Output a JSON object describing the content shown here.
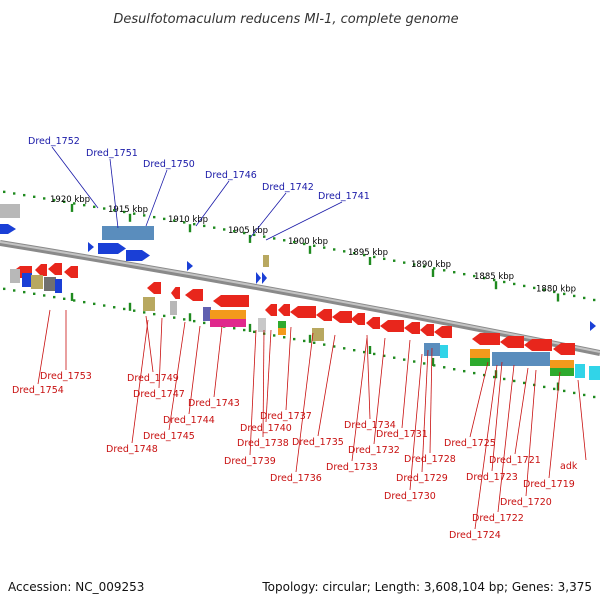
{
  "title": "Desulfotomaculum reducens MI-1, complete genome",
  "footer": {
    "accession": "Accession: NC_009253",
    "topology": "Topology: circular; Length: 3,608,104 bp; Genes: 3,375"
  },
  "ticks": [
    "1920 kbp",
    "1915 kbp",
    "1910 kbp",
    "1905 kbp",
    "1900 kbp",
    "1895 kbp",
    "1890 kbp",
    "1885 kbp",
    "1880 kbp"
  ],
  "upper_labels": [
    "Dred_1752",
    "Dred_1751",
    "Dred_1750",
    "Dred_1746",
    "Dred_1742",
    "Dred_1741"
  ],
  "lower_labels": [
    "Dred_1753",
    "Dred_1754",
    "Dred_1749",
    "Dred_1747",
    "Dred_1748",
    "Dred_1743",
    "Dred_1744",
    "Dred_1745",
    "Dred_1737",
    "Dred_1740",
    "Dred_1738",
    "Dred_1739",
    "Dred_1736",
    "Dred_1735",
    "Dred_1734",
    "Dred_1733",
    "Dred_1732",
    "Dred_1731",
    "Dred_1728",
    "Dred_1729",
    "Dred_1730",
    "Dred_1725",
    "Dred_1723",
    "Dred_1722",
    "Dred_1724",
    "Dred_1721",
    "Dred_1720",
    "Dred_1719",
    "adk"
  ],
  "colors": {
    "backbone": "#8a8a8a",
    "forward_gene": "#1a3fd6",
    "reverse_gene": "#e8261c",
    "tick_mark": "#1f8a1f",
    "upper_label": "#1a1aa8",
    "lower_label": "#c81010"
  }
}
